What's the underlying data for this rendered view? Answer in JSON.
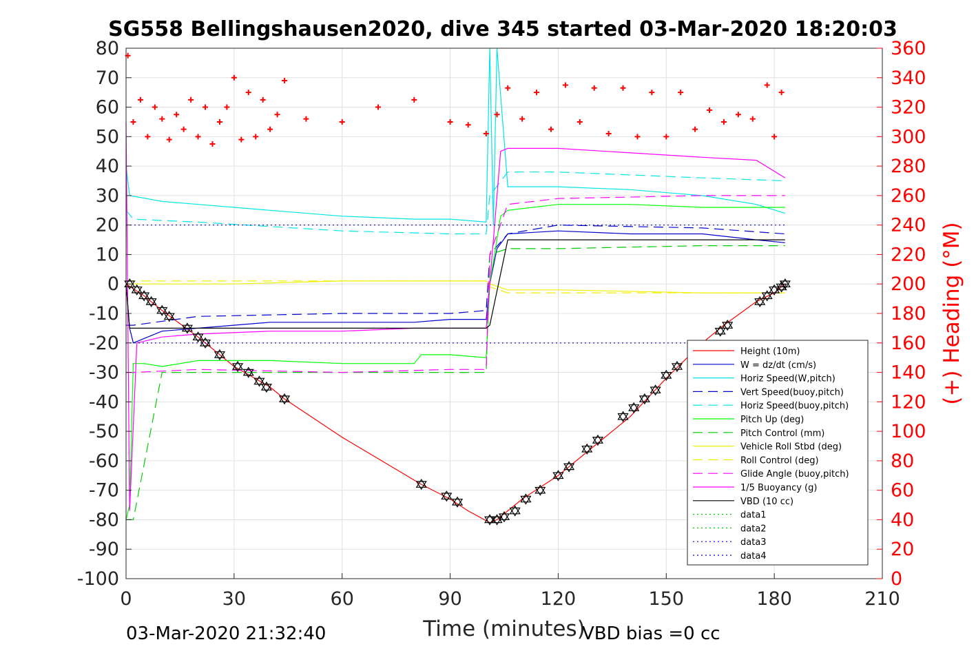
{
  "chart_data": {
    "type": "line",
    "title": "SG558 Bellingshausen2020, dive 345 started 03-Mar-2020 18:20:03",
    "xlabel": "Time (minutes)",
    "ylabel_right": "(+) Heading (°M)",
    "xlim": [
      0,
      210
    ],
    "ylim": [
      -100,
      80
    ],
    "ylim_right": [
      0,
      360
    ],
    "xticks": [
      0,
      30,
      60,
      90,
      120,
      150,
      180,
      210
    ],
    "yticks": [
      -100,
      -90,
      -80,
      -70,
      -60,
      -50,
      -40,
      -30,
      -20,
      -10,
      0,
      10,
      20,
      30,
      40,
      50,
      60,
      70,
      80
    ],
    "yticks_right": [
      0,
      20,
      40,
      60,
      80,
      100,
      120,
      140,
      160,
      180,
      200,
      220,
      240,
      260,
      280,
      300,
      320,
      340,
      360
    ],
    "grid": true,
    "legend_position": "bottom-right",
    "series": [
      {
        "name": "Height (10m)",
        "color": "#ff0000",
        "style": "solid",
        "x": [
          0,
          5,
          10,
          20,
          30,
          40,
          44,
          60,
          82,
          90,
          95,
          101,
          103,
          110,
          120,
          130,
          140,
          150,
          160,
          166,
          175,
          180,
          183
        ],
        "y": [
          0,
          -4,
          -9,
          -18,
          -28,
          -35,
          -39,
          -52,
          -68,
          -73,
          -77,
          -81,
          -80,
          -73,
          -65,
          -55,
          -45,
          -32,
          -20,
          -14,
          -6,
          -3,
          0
        ]
      },
      {
        "name": "W = dz/dt (cm/s)",
        "color": "#0000cc",
        "style": "solid",
        "x": [
          0,
          1,
          2,
          10,
          20,
          40,
          60,
          80,
          90,
          100,
          101,
          103,
          106,
          120,
          140,
          160,
          175,
          183
        ],
        "y": [
          0,
          -15,
          -20,
          -16,
          -15,
          -13,
          -13,
          -13,
          -12,
          -12,
          0,
          12,
          17,
          18,
          17,
          17,
          15,
          14
        ]
      },
      {
        "name": "Horiz Speed(W,pitch)",
        "color": "#00e5e5",
        "style": "solid",
        "x": [
          0,
          1,
          10,
          20,
          40,
          60,
          80,
          90,
          100,
          101,
          102,
          103,
          106,
          120,
          140,
          160,
          175,
          183
        ],
        "y": [
          40,
          30,
          28,
          27,
          25,
          23,
          22,
          22,
          21,
          80,
          20,
          80,
          33,
          33,
          32,
          30,
          27,
          24
        ]
      },
      {
        "name": "Vert Speed(buoy,pitch)",
        "color": "#0000cc",
        "style": "dashed",
        "x": [
          0,
          2,
          20,
          60,
          90,
          100,
          101,
          106,
          120,
          160,
          183
        ],
        "y": [
          -14,
          -14,
          -11,
          -10,
          -10,
          -9,
          10,
          17,
          20,
          19,
          17
        ]
      },
      {
        "name": "Horiz Speed(buoy,pitch)",
        "color": "#00e5e5",
        "style": "dashed",
        "x": [
          0,
          2,
          20,
          60,
          90,
          100,
          101,
          106,
          120,
          160,
          183
        ],
        "y": [
          25,
          22,
          21,
          18,
          17,
          17,
          30,
          38,
          38,
          36,
          35
        ]
      },
      {
        "name": "Pitch Up (deg)",
        "color": "#00ff00",
        "style": "solid",
        "x": [
          0,
          1,
          2,
          5,
          10,
          20,
          40,
          60,
          80,
          82,
          90,
          100,
          101,
          104,
          106,
          120,
          140,
          160,
          183
        ],
        "y": [
          -80,
          -75,
          -27,
          -27,
          -28,
          -26,
          -26,
          -27,
          -27,
          -24,
          -24,
          -25,
          0,
          23,
          25,
          27,
          27,
          26,
          26
        ]
      },
      {
        "name": "Pitch Control (mm)",
        "color": "#00cc00",
        "style": "dashed",
        "x": [
          0,
          2,
          10,
          40,
          90,
          100,
          101,
          106,
          120,
          160,
          183
        ],
        "y": [
          -80,
          -80,
          -30,
          -30,
          -30,
          -30,
          10,
          12,
          12,
          13,
          13
        ]
      },
      {
        "name": "Vehicle Roll Stbd (deg)",
        "color": "#f0f000",
        "style": "solid",
        "x": [
          0,
          10,
          30,
          60,
          90,
          100,
          101,
          106,
          120,
          160,
          183
        ],
        "y": [
          0,
          0,
          0,
          1,
          1,
          1,
          0,
          -2,
          -2,
          -3,
          -3
        ]
      },
      {
        "name": "Roll Control (deg)",
        "color": "#f0f000",
        "style": "dashed",
        "x": [
          0,
          10,
          30,
          60,
          90,
          100,
          101,
          106,
          120,
          160,
          183
        ],
        "y": [
          1,
          1,
          1,
          1,
          1,
          1,
          -1,
          -3,
          -3,
          -3,
          -3
        ]
      },
      {
        "name": "Glide Angle (buoy,pitch)",
        "color": "#ff00ff",
        "style": "dashed",
        "x": [
          0,
          2,
          20,
          60,
          90,
          100,
          101,
          106,
          120,
          160,
          183
        ],
        "y": [
          -30,
          -30,
          -29,
          -30,
          -29,
          -29,
          10,
          27,
          29,
          30,
          30
        ]
      },
      {
        "name": "1/5 Buoyancy (g)",
        "color": "#ff00ff",
        "style": "solid",
        "x": [
          0,
          1,
          3,
          10,
          20,
          40,
          60,
          80,
          100,
          101,
          104,
          106,
          120,
          160,
          175,
          183
        ],
        "y": [
          55,
          -77,
          -20,
          -18,
          -17,
          -16,
          -16,
          -15,
          -15,
          0,
          45,
          46,
          46,
          43,
          42,
          36
        ]
      },
      {
        "name": "VBD (10 cc)",
        "color": "#000000",
        "style": "solid",
        "x": [
          0,
          1,
          2,
          100,
          101,
          106,
          183
        ],
        "y": [
          0,
          -15,
          -15,
          -15,
          -14,
          15,
          15
        ]
      },
      {
        "name": "data1",
        "color": "#00cc00",
        "style": "dotted",
        "x": [],
        "y": []
      },
      {
        "name": "data2",
        "color": "#00cc00",
        "style": "dotted",
        "x": [],
        "y": []
      },
      {
        "name": "data3",
        "color": "#0000cc",
        "style": "dotted",
        "x": [
          0,
          183
        ],
        "y": [
          20,
          20
        ]
      },
      {
        "name": "data4",
        "color": "#0000cc",
        "style": "dotted",
        "x": [
          0,
          183
        ],
        "y": [
          -20,
          -20
        ]
      }
    ],
    "heading_series": {
      "axis": "right",
      "color": "#ff0000",
      "x": [
        0.5,
        2,
        4,
        6,
        8,
        10,
        12,
        14,
        16,
        18,
        20,
        22,
        24,
        26,
        28,
        30,
        32,
        34,
        36,
        38,
        40,
        42,
        44,
        50,
        60,
        70,
        80,
        90,
        95,
        100,
        103,
        106,
        110,
        114,
        118,
        122,
        126,
        130,
        134,
        138,
        142,
        146,
        150,
        154,
        158,
        162,
        166,
        170,
        174,
        178,
        180,
        182
      ],
      "y": [
        355,
        310,
        325,
        300,
        320,
        312,
        298,
        315,
        305,
        325,
        300,
        320,
        295,
        310,
        320,
        340,
        298,
        330,
        300,
        325,
        305,
        315,
        338,
        312,
        310,
        320,
        325,
        310,
        308,
        302,
        315,
        333,
        312,
        330,
        305,
        335,
        310,
        333,
        302,
        333,
        300,
        330,
        300,
        330,
        305,
        318,
        310,
        315,
        312,
        335,
        300,
        330
      ]
    },
    "vbd_markers": {
      "x": [
        1,
        3,
        5,
        7,
        10,
        12,
        17,
        20,
        22,
        26,
        31,
        34,
        37,
        39,
        44,
        82,
        89,
        92,
        101,
        103,
        105,
        108,
        111,
        115,
        120,
        123,
        128,
        131,
        138,
        141,
        144,
        147,
        150,
        153,
        165,
        167,
        176,
        178,
        180,
        182,
        183
      ],
      "y": [
        0,
        -2,
        -4,
        -6,
        -9,
        -11,
        -15,
        -18,
        -20,
        -24,
        -28,
        -30,
        -33,
        -35,
        -39,
        -68,
        -72,
        -74,
        -80,
        -80,
        -79,
        -77,
        -73,
        -70,
        -65,
        -62,
        -56,
        -53,
        -45,
        -42,
        -39,
        -36,
        -31,
        -28,
        -16,
        -14,
        -6,
        -4,
        -2,
        -1,
        0
      ]
    }
  },
  "footer": {
    "timestamp": "03-Mar-2020 21:32:40",
    "vbd_bias": "VBD bias =0 cc"
  }
}
